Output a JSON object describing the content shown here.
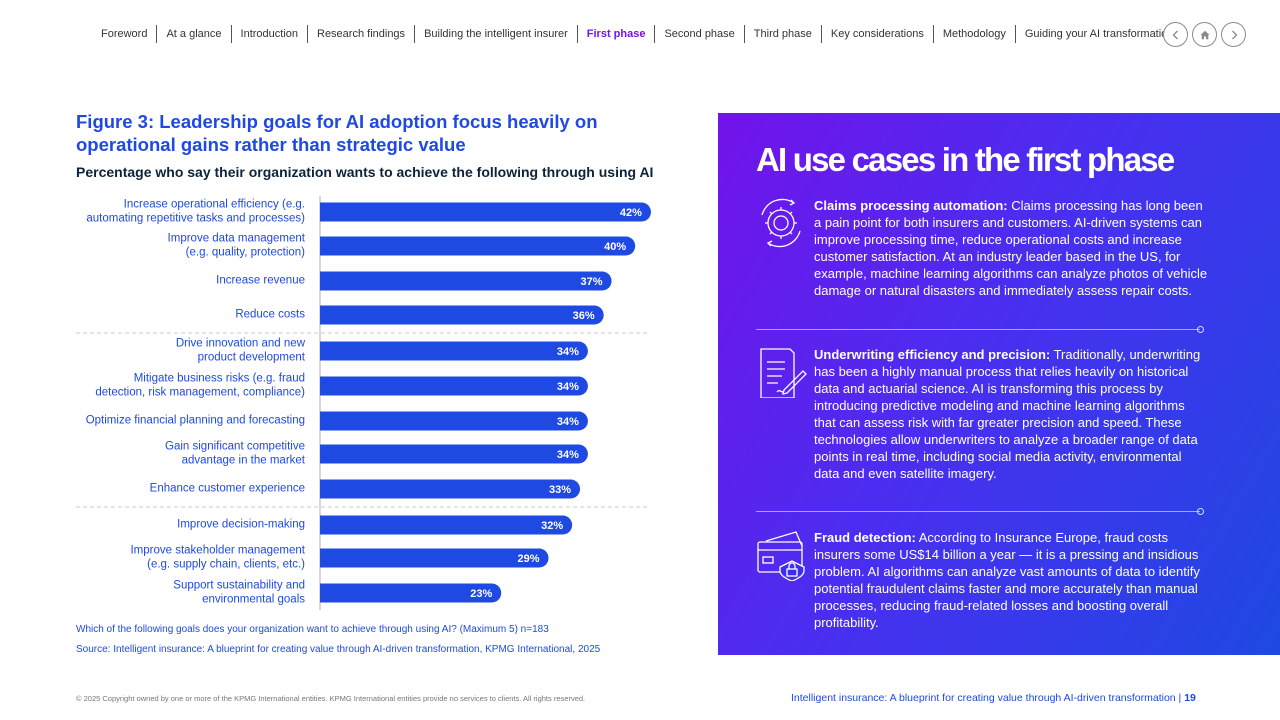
{
  "nav": {
    "items": [
      "Foreword",
      "At a glance",
      "Introduction",
      "Research findings",
      "Building the intelligent insurer",
      "First phase",
      "Second phase",
      "Third phase",
      "Key considerations",
      "Methodology",
      "Guiding your AI transformation"
    ],
    "active_index": 5
  },
  "figure": {
    "title": "Figure 3: Leadership goals for AI adoption focus heavily on operational gains rather than strategic value",
    "subtitle": "Percentage who say their organization wants to achieve the following through using AI",
    "question": "Which of the following goals does your organization want to achieve through using AI? (Maximum 5) n=183",
    "source": "Source: Intelligent insurance: A blueprint for creating value through AI-driven transformation, KPMG International, 2025"
  },
  "chart_data": {
    "type": "bar",
    "orientation": "horizontal",
    "categories": [
      "Increase operational efficiency (e.g.\nautomating repetitive tasks and processes)",
      "Improve data management\n(e.g. quality, protection)",
      "Increase revenue",
      "Reduce costs",
      "Drive innovation and new\nproduct development",
      "Mitigate business risks (e.g. fraud\ndetection, risk management, compliance)",
      "Optimize financial planning and forecasting",
      "Gain significant competitive\nadvantage in the market",
      "Enhance customer experience",
      "Improve decision-making",
      "Improve stakeholder management\n(e.g. supply chain, clients, etc.)",
      "Support sustainability and\nenvironmental goals"
    ],
    "values": [
      42,
      40,
      37,
      36,
      34,
      34,
      34,
      34,
      33,
      32,
      29,
      23
    ],
    "value_labels": [
      "42%",
      "40%",
      "37%",
      "36%",
      "34%",
      "34%",
      "34%",
      "34%",
      "33%",
      "32%",
      "29%",
      "23%"
    ],
    "group_breaks_after": [
      3,
      8
    ],
    "xlim": [
      0,
      60
    ],
    "bar_color": "#1e49e2"
  },
  "panel": {
    "title": "AI use cases in the first phase",
    "cases": [
      {
        "icon": "gear-cycle-icon",
        "heading": "Claims processing automation:",
        "body": " Claims processing has long been a pain point for both insurers and customers. AI-driven systems can improve processing time, reduce operational costs and increase customer satisfaction. At an industry leader based in the US, for example, machine learning algorithms can analyze photos of vehicle damage or natural disasters and immediately assess repair costs."
      },
      {
        "icon": "document-pen-icon",
        "heading": "Underwriting efficiency and precision:",
        "body": " Traditionally, underwriting has been a highly manual process that relies heavily on historical data and actuarial science. AI is transforming this process by introducing predictive modeling and machine learning algorithms that can assess risk with far greater precision and speed. These technologies allow underwriters to analyze a broader range of data points in real time, including social media activity, environmental data and even satellite imagery."
      },
      {
        "icon": "card-lock-icon",
        "heading": "Fraud detection:",
        "body": " According to Insurance Europe, fraud costs insurers some US$14 billion a year — it is a pressing and insidious problem. AI algorithms can analyze vast amounts of data to identify potential fraudulent claims faster and more accurately than manual processes, reducing fraud-related losses and boosting overall profitability."
      }
    ]
  },
  "footer": {
    "copyright": "© 2025 Copyright owned by one or more of the KPMG International entities. KPMG International entities provide no services to clients. All rights reserved.",
    "doc_title": "Intelligent insurance: A blueprint for creating value through AI-driven transformation |",
    "page_number": "19"
  }
}
